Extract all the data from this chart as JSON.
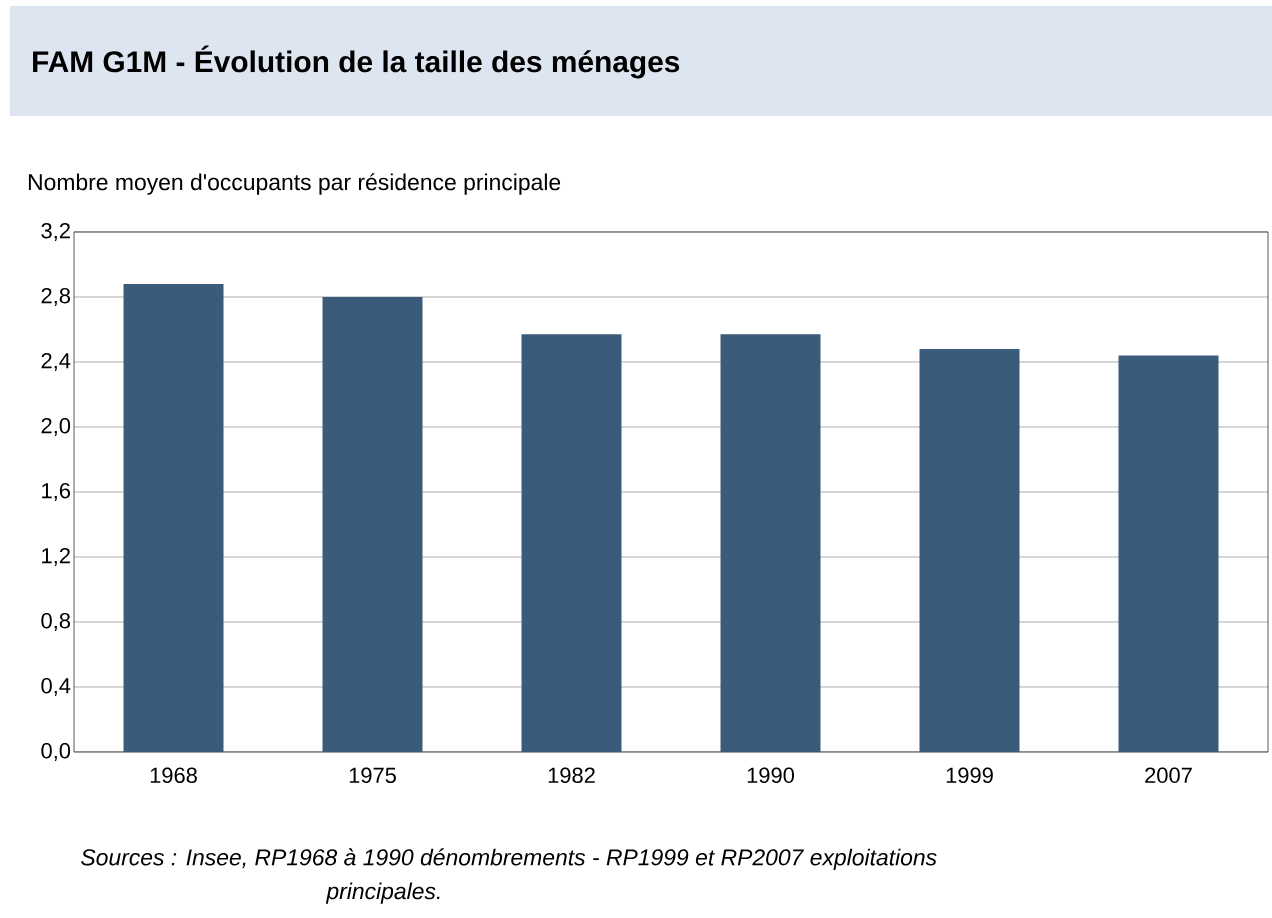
{
  "chart_data": {
    "type": "bar",
    "title": "FAM G1M - Évolution de la taille des ménages",
    "ylabel": "Nombre moyen d'occupants par résidence principale",
    "categories": [
      "1968",
      "1975",
      "1982",
      "1990",
      "1999",
      "2007"
    ],
    "values": [
      2.88,
      2.8,
      2.57,
      2.57,
      2.48,
      2.44
    ],
    "color": "#3b5b7a",
    "ylim": [
      0,
      3.2
    ],
    "yticks": [
      {
        "value": 0,
        "label": "0,0"
      },
      {
        "value": 0.4,
        "label": "0,4"
      },
      {
        "value": 0.8,
        "label": "0,8"
      },
      {
        "value": 1.2,
        "label": "1,2"
      },
      {
        "value": 1.6,
        "label": "1,6"
      },
      {
        "value": 2.0,
        "label": "2,0"
      },
      {
        "value": 2.4,
        "label": "2,4"
      },
      {
        "value": 2.8,
        "label": "2,8"
      },
      {
        "value": 3.2,
        "label": "3,2"
      }
    ],
    "grid": "y",
    "annotations": [
      "Sources : Insee, RP1968 à 1990 dénombrements - RP1999 et RP2007 exploitations principales."
    ]
  }
}
